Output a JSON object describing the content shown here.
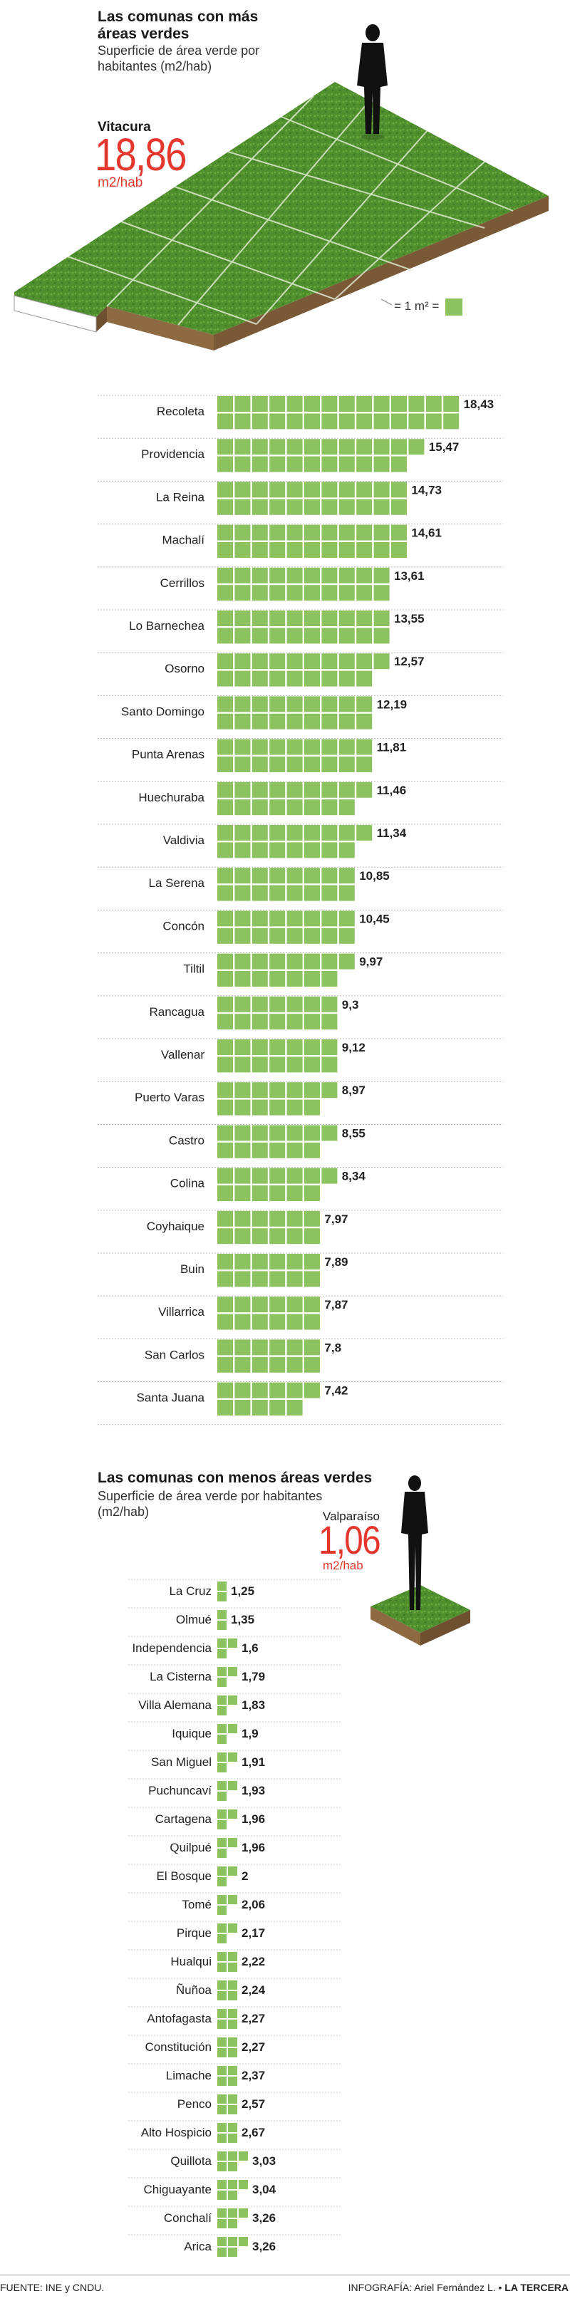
{
  "header": {
    "title": "Las comunas con más áreas verdes",
    "subtitle": "Superficie de área verde por habitantes (m2/hab)"
  },
  "highlight_top": {
    "name": "Vitacura",
    "value": "18,86",
    "unit": "m2/hab"
  },
  "legend": {
    "key": "= 1 m² ="
  },
  "section2": {
    "title": "Las comunas con menos áreas verdes",
    "subtitle": "Superficie de área verde por habitantes (m2/hab)"
  },
  "highlight_bottom": {
    "name": "Valparaíso",
    "value": "1,06",
    "unit": "m2/hab"
  },
  "footer": {
    "source": "FUENTE: INE y CNDU.",
    "credit_prefix": "INFOGRAFÍA: Ariel Fernández L. •",
    "credit_brand": "LA TERCERA"
  },
  "colors": {
    "accent": "#e4382f",
    "bar": "#8dc260",
    "grass": "#4f8f2e"
  },
  "chart_data": [
    {
      "type": "bar",
      "orientation": "horizontal",
      "unit": "m2/hab",
      "categories": [
        "Recoleta",
        "Providencia",
        "La Reina",
        "Machalí",
        "Cerrillos",
        "Lo Barnechea",
        "Osorno",
        "Santo Domingo",
        "Punta Arenas",
        "Huechuraba",
        "Valdivia",
        "La Serena",
        "Concón",
        "Tiltil",
        "Rancagua",
        "Vallenar",
        "Puerto Varas",
        "Castro",
        "Colina",
        "Coyhaique",
        "Buin",
        "Villarrica",
        "San Carlos",
        "Santa Juana"
      ],
      "values": [
        18.43,
        15.47,
        14.73,
        14.61,
        13.61,
        13.55,
        12.57,
        12.19,
        11.81,
        11.46,
        11.34,
        10.85,
        10.45,
        9.97,
        9.3,
        9.12,
        8.97,
        8.55,
        8.34,
        7.97,
        7.89,
        7.87,
        7.8,
        7.42
      ],
      "labels": [
        "18,43",
        "15,47",
        "14,73",
        "14,61",
        "13,61",
        "13,55",
        "12,57",
        "12,19",
        "11,81",
        "11,46",
        "11,34",
        "10,85",
        "10,45",
        "9,97",
        "9,3",
        "9,12",
        "8,97",
        "8,55",
        "8,34",
        "7,97",
        "7,89",
        "7,87",
        "7,8",
        "7,42"
      ]
    },
    {
      "type": "bar",
      "orientation": "horizontal",
      "unit": "m2/hab",
      "categories": [
        "La Cruz",
        "Olmué",
        "Independencia",
        "La Cisterna",
        "Villa Alemana",
        "Iquique",
        "San Miguel",
        "Puchuncaví",
        "Cartagena",
        "Quilpué",
        "El Bosque",
        "Tomé",
        "Pirque",
        "Hualqui",
        "Ñuñoa",
        "Antofagasta",
        "Constitución",
        "Limache",
        "Penco",
        "Alto Hospicio",
        "Quillota",
        "Chiguayante",
        "Conchalí",
        "Arica"
      ],
      "values": [
        1.25,
        1.35,
        1.6,
        1.79,
        1.83,
        1.9,
        1.91,
        1.93,
        1.96,
        1.96,
        2,
        2.06,
        2.17,
        2.22,
        2.24,
        2.27,
        2.27,
        2.37,
        2.57,
        2.67,
        3.03,
        3.04,
        3.26,
        3.26
      ],
      "labels": [
        "1,25",
        "1,35",
        "1,6",
        "1,79",
        "1,83",
        "1,9",
        "1,91",
        "1,93",
        "1,96",
        "1,96",
        "2",
        "2,06",
        "2,17",
        "2,22",
        "2,24",
        "2,27",
        "2,27",
        "2,37",
        "2,57",
        "2,67",
        "3,03",
        "3,04",
        "3,26",
        "3,26"
      ]
    }
  ]
}
